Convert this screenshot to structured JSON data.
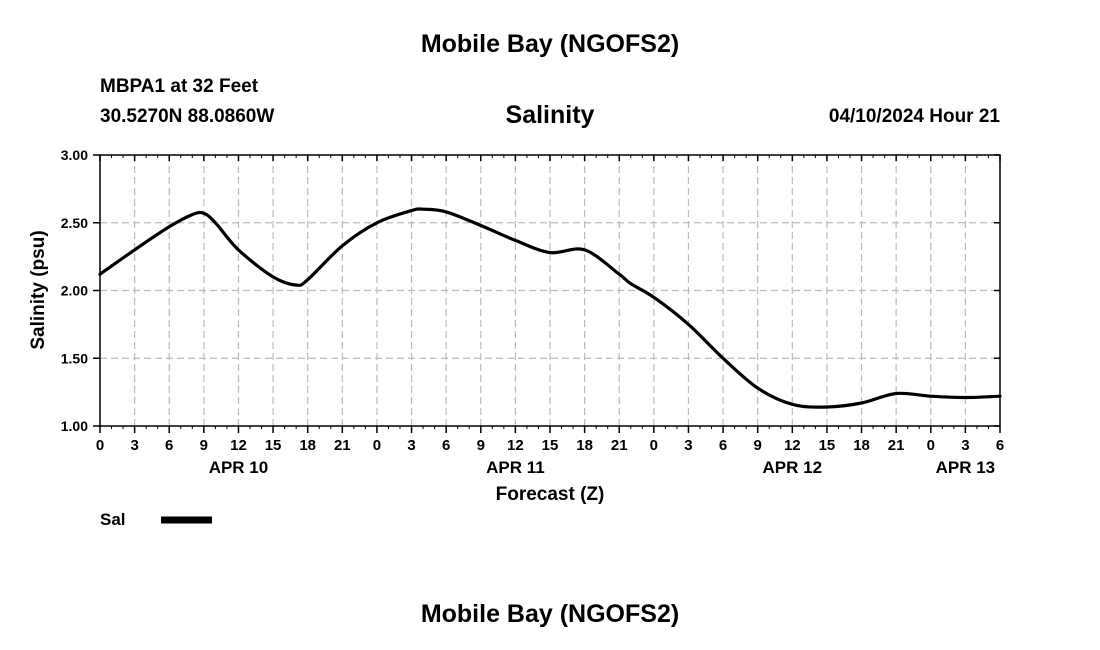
{
  "header": {
    "top_title": "Mobile Bay (NGOFS2)",
    "station": "MBPA1 at 32 Feet",
    "coords": "30.5270N  88.0860W",
    "timestamp": "04/10/2024 Hour 21",
    "bottom_title": "Mobile Bay (NGOFS2)"
  },
  "chart_data": {
    "type": "line",
    "title": "Salinity",
    "xlabel": "Forecast (Z)",
    "ylabel": "Salinity (psu)",
    "ylim": [
      1.0,
      3.0
    ],
    "yticks": [
      1.0,
      1.5,
      2.0,
      2.5,
      3.0
    ],
    "ytick_labels": [
      "1.00",
      "1.50",
      "2.00",
      "2.50",
      "3.00"
    ],
    "xlim": [
      0,
      78
    ],
    "xticks": [
      0,
      3,
      6,
      9,
      12,
      15,
      18,
      21,
      24,
      27,
      30,
      33,
      36,
      39,
      42,
      45,
      48,
      51,
      54,
      57,
      60,
      63,
      66,
      69,
      72,
      75,
      78
    ],
    "xtick_labels": [
      "0",
      "3",
      "6",
      "9",
      "12",
      "15",
      "18",
      "21",
      "0",
      "3",
      "6",
      "9",
      "12",
      "15",
      "18",
      "21",
      "0",
      "3",
      "6",
      "9",
      "12",
      "15",
      "18",
      "21",
      "0",
      "3",
      "6"
    ],
    "date_labels": [
      {
        "x": 12,
        "label": "APR 10"
      },
      {
        "x": 36,
        "label": "APR 11"
      },
      {
        "x": 60,
        "label": "APR 12"
      },
      {
        "x": 75,
        "label": "APR 13"
      }
    ],
    "grid": true,
    "legend": {
      "placement": "bottom-left",
      "entries": [
        "Sal"
      ]
    },
    "line_color": "#000000",
    "grid_color": "#bbbbbb",
    "series": [
      {
        "name": "Sal",
        "x": [
          0,
          3,
          6,
          8,
          9,
          10,
          12,
          15,
          17,
          18,
          21,
          24,
          27,
          28,
          30,
          33,
          36,
          39,
          42,
          45,
          46,
          48,
          51,
          54,
          57,
          60,
          63,
          66,
          69,
          72,
          75,
          78
        ],
        "values": [
          2.12,
          2.3,
          2.47,
          2.56,
          2.57,
          2.5,
          2.3,
          2.1,
          2.04,
          2.08,
          2.33,
          2.5,
          2.59,
          2.6,
          2.58,
          2.48,
          2.37,
          2.28,
          2.3,
          2.12,
          2.05,
          1.95,
          1.75,
          1.5,
          1.28,
          1.16,
          1.14,
          1.17,
          1.24,
          1.22,
          1.21,
          1.22
        ]
      }
    ]
  }
}
